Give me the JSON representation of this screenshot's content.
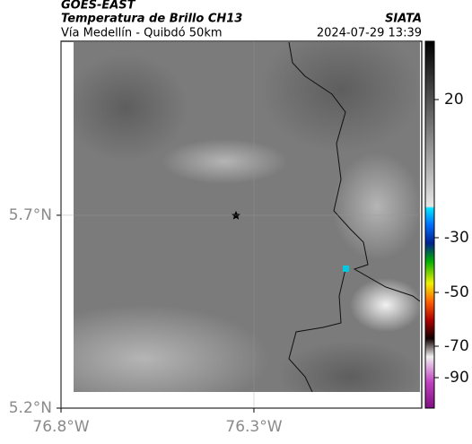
{
  "header": {
    "source": "GOES-EAST",
    "title": "Temperatura de Brillo CH13",
    "brand": "SIATA",
    "subtitle": "Vía Medellín - Quibdó 50km",
    "timestamp": "2024-07-29 13:39"
  },
  "map": {
    "latlim": [
      5.2,
      6.151
    ],
    "lonlim": [
      -76.8,
      -75.865
    ],
    "latticks": [
      {
        "value": 5.2,
        "label": "5.2°N"
      },
      {
        "value": 5.7,
        "label": "5.7°N"
      }
    ],
    "lonticks": [
      {
        "value": -76.8,
        "label": "76.8°W"
      },
      {
        "value": -76.3,
        "label": "76.3°W"
      }
    ]
  },
  "colorbar": {
    "ticks": [
      20,
      -30,
      -50,
      -70,
      -90
    ]
  }
}
